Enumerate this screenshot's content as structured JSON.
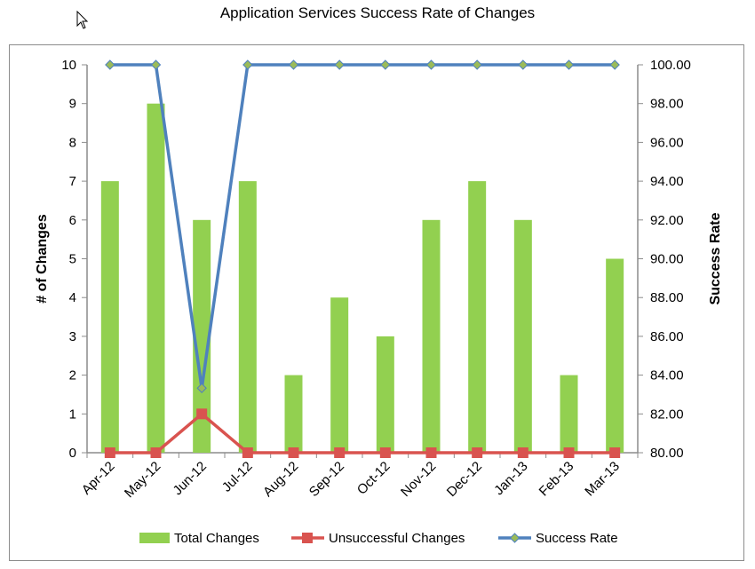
{
  "chart_data": {
    "type": "bar",
    "title": "Application Services Success Rate of Changes",
    "categories": [
      "Apr-12",
      "May-12",
      "Jun-12",
      "Jul-12",
      "Aug-12",
      "Sep-12",
      "Oct-12",
      "Nov-12",
      "Dec-12",
      "Jan-13",
      "Feb-13",
      "Mar-13"
    ],
    "series": [
      {
        "name": "Total Changes",
        "type": "bar",
        "axis": "left",
        "color": "#92d050",
        "values": [
          7,
          9,
          6,
          7,
          2,
          4,
          3,
          6,
          7,
          6,
          2,
          5
        ]
      },
      {
        "name": "Unsuccessful Changes",
        "type": "line",
        "axis": "left",
        "color": "#d9534f",
        "marker": "square",
        "values": [
          0,
          0,
          1,
          0,
          0,
          0,
          0,
          0,
          0,
          0,
          0,
          0
        ]
      },
      {
        "name": "Success Rate",
        "type": "line",
        "axis": "right",
        "color": "#4f81bd",
        "marker": "diamond",
        "markerColor": "#9bbb59",
        "values": [
          100,
          100,
          83.33,
          100,
          100,
          100,
          100,
          100,
          100,
          100,
          100,
          100
        ]
      }
    ],
    "ylabel": "# of Changes",
    "y2label": "Success Rate",
    "ylim": [
      0,
      10
    ],
    "y2lim": [
      80,
      100
    ],
    "yticks": [
      "0",
      "1",
      "2",
      "3",
      "4",
      "5",
      "6",
      "7",
      "8",
      "9",
      "10"
    ],
    "y2ticks": [
      "80.00",
      "82.00",
      "84.00",
      "86.00",
      "88.00",
      "90.00",
      "92.00",
      "94.00",
      "96.00",
      "98.00",
      "100.00"
    ],
    "grid": false,
    "legend": "bottom"
  }
}
